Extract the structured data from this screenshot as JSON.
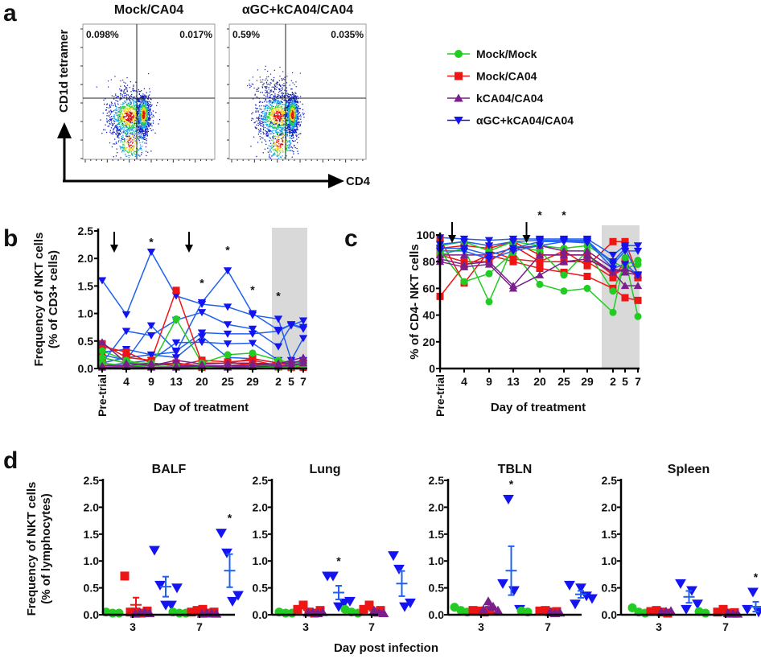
{
  "colors": {
    "green": "#22cc22",
    "red": "#ee1515",
    "purple": "#7a1f8c",
    "blue": "#1414f0",
    "blue_line": "#2060f0",
    "shade": "#d9d9d9"
  },
  "legend": [
    {
      "label": "Mock/Mock",
      "marker": "circle",
      "color": "green"
    },
    {
      "label": "Mock/CA04",
      "marker": "square",
      "color": "red"
    },
    {
      "label": "kCA04/CA04",
      "marker": "triangle-up",
      "color": "purple"
    },
    {
      "label": "αGC+kCA04/CA04",
      "marker": "triangle-down",
      "color": "blue"
    }
  ],
  "chart_data": [
    {
      "panel": "a",
      "type": "scatter",
      "subtype": "flow-cytometry-density",
      "ylabel": "CD1d tetramer",
      "xlabel": "CD4",
      "plots": [
        {
          "title": "Mock/CA04",
          "upper_left": "0.098%",
          "upper_right": "0.017%"
        },
        {
          "title": "αGC+kCA04/CA04",
          "upper_left": "0.59%",
          "upper_right": "0.035%"
        }
      ]
    },
    {
      "panel": "b",
      "type": "line",
      "ylabel": "Frequency of NKT cells\n(% of CD3+ cells)",
      "ylabel_lines": [
        "Frequency of NKT cells",
        "(% of CD3+ cells)"
      ],
      "xlabel": "Day of treatment",
      "categories": [
        "Pre-trial",
        "4",
        "9",
        "13",
        "20",
        "25",
        "29",
        "2",
        "5",
        "7"
      ],
      "yticks": [
        "0.0",
        "0.5",
        "1.0",
        "1.5",
        "2.0",
        "2.5"
      ],
      "ylim": [
        0,
        2.5
      ],
      "shaded_categories": [
        "2",
        "5",
        "7"
      ],
      "arrows_between": [
        [
          "Pre-trial",
          "4"
        ],
        [
          "13",
          "20"
        ]
      ],
      "significance": [
        {
          "category": "9",
          "value": 2.35,
          "label": "*"
        },
        {
          "category": "20",
          "value": 1.6,
          "label": "*"
        },
        {
          "category": "25",
          "value": 2.2,
          "label": "*"
        },
        {
          "category": "29",
          "value": 1.48,
          "label": "*"
        },
        {
          "category": "2",
          "value": 1.37,
          "label": "*"
        }
      ],
      "series": [
        {
          "group": "blue",
          "values": [
            1.6,
            0.98,
            2.12,
            1.32,
            1.17,
            1.12,
            0.97,
            0.9,
            0.15,
            0.55
          ]
        },
        {
          "group": "blue",
          "values": [
            0.3,
            0.35,
            0.25,
            0.3,
            1.2,
            1.78,
            1.0,
            0.7,
            0.8,
            0.72
          ]
        },
        {
          "group": "blue",
          "values": [
            0.1,
            0.68,
            0.6,
            0.88,
            1.02,
            0.8,
            0.72,
            0.4,
            0.78,
            0.87
          ]
        },
        {
          "group": "blue",
          "values": [
            0.25,
            0.15,
            0.78,
            0.32,
            0.65,
            0.63,
            0.63,
            0.68,
            0.8,
            0.75
          ]
        },
        {
          "group": "blue",
          "values": [
            0.05,
            0.1,
            0.15,
            0.47,
            0.48,
            0.45,
            0.46,
            0.15,
            0.05,
            0.15
          ]
        },
        {
          "group": "blue",
          "values": [
            0.1,
            0.2,
            0.25,
            0.2,
            0.58,
            0.2,
            0.18,
            0.1,
            0.08,
            0.1
          ]
        },
        {
          "group": "red",
          "values": [
            0.45,
            0.2,
            0.15,
            1.42,
            0.1,
            0.1,
            0.18,
            0.1,
            0.05,
            0.1
          ]
        },
        {
          "group": "red",
          "values": [
            0.4,
            0.3,
            0.1,
            0.05,
            0.15,
            0.12,
            0.15,
            0.05,
            0.02,
            0.08
          ]
        },
        {
          "group": "red",
          "values": [
            0.1,
            0.05,
            0.05,
            0.1,
            0.05,
            0.05,
            0.08,
            0.05,
            0.03,
            0.05
          ]
        },
        {
          "group": "red",
          "values": [
            0.2,
            0.1,
            0.08,
            0.1,
            0.02,
            0.05,
            0.1,
            0.03,
            0.02,
            0.02
          ]
        },
        {
          "group": "green",
          "values": [
            0.32,
            0.15,
            0.05,
            0.9,
            0.1,
            0.25,
            0.28,
            0.15,
            0.1,
            0.1
          ]
        },
        {
          "group": "green",
          "values": [
            0.2,
            0.1,
            0.1,
            0.05,
            0.05,
            0.05,
            0.05,
            0.05,
            0.05,
            0.05
          ]
        },
        {
          "group": "green",
          "values": [
            0.1,
            0.05,
            0.05,
            0.03,
            0.02,
            0.03,
            0.03,
            0.02,
            0.02,
            0.05
          ]
        },
        {
          "group": "purple",
          "values": [
            0.48,
            0.1,
            0.05,
            0.15,
            0.08,
            0.1,
            0.1,
            0.08,
            0.15,
            0.2
          ]
        },
        {
          "group": "purple",
          "values": [
            0.05,
            0.05,
            0.1,
            0.05,
            0.05,
            0.05,
            0.05,
            0.1,
            0.1,
            0.15
          ]
        },
        {
          "group": "purple",
          "values": [
            0.02,
            0.03,
            0.02,
            0.02,
            0.05,
            0.02,
            0.03,
            0.05,
            0.05,
            0.1
          ]
        }
      ]
    },
    {
      "panel": "c",
      "type": "line",
      "ylabel": "% of CD4- NKT cells",
      "xlabel": "Day of treatment",
      "categories": [
        "Pre-trial",
        "4",
        "9",
        "13",
        "20",
        "25",
        "29",
        "2",
        "5",
        "7"
      ],
      "yticks": [
        "0",
        "20",
        "40",
        "60",
        "80",
        "100"
      ],
      "ylim": [
        0,
        100
      ],
      "shaded_categories": [
        "2",
        "5",
        "7"
      ],
      "arrows_between": [
        [
          "Pre-trial",
          "4"
        ],
        [
          "13",
          "20"
        ]
      ],
      "significance": [
        {
          "category": "20",
          "value": 117,
          "label": "*"
        },
        {
          "category": "25",
          "value": 117,
          "label": "*"
        }
      ],
      "series": [
        {
          "group": "red",
          "values": [
            54,
            77,
            85,
            80,
            75,
            72,
            69,
            60,
            53,
            51
          ]
        },
        {
          "group": "red",
          "values": [
            97,
            64,
            88,
            82,
            80,
            88,
            77,
            95,
            95,
            70
          ]
        },
        {
          "group": "red",
          "values": [
            90,
            92,
            90,
            95,
            85,
            85,
            85,
            70,
            75,
            70
          ]
        },
        {
          "group": "red",
          "values": [
            85,
            80,
            80,
            92,
            80,
            80,
            80,
            68,
            80,
            68
          ]
        },
        {
          "group": "green",
          "values": [
            88,
            65,
            71,
            87,
            63,
            58,
            60,
            42,
            83,
            39
          ]
        },
        {
          "group": "green",
          "values": [
            85,
            90,
            50,
            92,
            88,
            70,
            88,
            58,
            78,
            81
          ]
        },
        {
          "group": "green",
          "values": [
            92,
            95,
            88,
            95,
            92,
            90,
            92,
            80,
            75,
            78
          ]
        },
        {
          "group": "purple",
          "values": [
            80,
            76,
            78,
            60,
            70,
            80,
            82,
            72,
            62,
            62
          ]
        },
        {
          "group": "purple",
          "values": [
            82,
            78,
            80,
            62,
            85,
            85,
            85,
            72,
            75,
            70
          ]
        },
        {
          "group": "purple",
          "values": [
            85,
            85,
            85,
            90,
            92,
            88,
            88,
            75,
            72,
            70
          ]
        },
        {
          "group": "blue",
          "values": [
            98,
            97,
            96,
            97,
            97,
            97,
            97,
            85,
            92,
            92
          ]
        },
        {
          "group": "blue",
          "values": [
            93,
            95,
            92,
            95,
            96,
            96,
            96,
            78,
            88,
            88
          ]
        },
        {
          "group": "blue",
          "values": [
            90,
            90,
            85,
            90,
            95,
            95,
            95,
            75,
            78,
            70
          ]
        },
        {
          "group": "blue",
          "values": [
            88,
            88,
            82,
            88,
            92,
            95,
            94,
            80,
            90,
            70
          ]
        }
      ]
    },
    {
      "panel": "d",
      "type": "scatter",
      "subtype": "dot-plot-mean-sem",
      "ylabel_lines": [
        "Frequency of NKT cells",
        "(% of lymphocytes)"
      ],
      "xlabel": "Day post infection",
      "categories": [
        "3",
        "7"
      ],
      "yticks": [
        "0.0",
        "0.5",
        "1.0",
        "1.5",
        "2.0",
        "2.5"
      ],
      "ylim": [
        0,
        2.5
      ],
      "subplots": [
        {
          "title": "BALF",
          "days": [
            {
              "green": [
                0.05,
                0.03,
                0.03
              ],
              "red": [
                0.72,
                0.05,
                0.05,
                0.03,
                0.07
              ],
              "purple": [
                0.02,
                0.04,
                0.05,
                0.03
              ],
              "blue": [
                1.2,
                0.55,
                0.18,
                0.18,
                0.5
              ],
              "star": false
            },
            {
              "green": [
                0.05,
                0.03,
                0.03
              ],
              "red": [
                0.05,
                0.08,
                0.1,
                0.03,
                0.05
              ],
              "purple": [
                0.02,
                0.03,
                0.03,
                0.02
              ],
              "blue": [
                1.52,
                1.15,
                0.25,
                0.36
              ],
              "star": true
            }
          ]
        },
        {
          "title": "Lung",
          "days": [
            {
              "green": [
                0.05,
                0.03,
                0.03
              ],
              "red": [
                0.1,
                0.18,
                0.05,
                0.03,
                0.08
              ],
              "purple": [
                0.04,
                0.05,
                0.03,
                0.05
              ],
              "blue": [
                0.72,
                0.72,
                0.15,
                0.22,
                0.25
              ],
              "star": true
            },
            {
              "green": [
                0.1,
                0.05,
                0.03
              ],
              "red": [
                0.1,
                0.18,
                0.05,
                0.08
              ],
              "purple": [
                0.08,
                0.04,
                0.03
              ],
              "blue": [
                1.1,
                0.85,
                0.15,
                0.22
              ],
              "star": false
            }
          ]
        },
        {
          "title": "TBLN",
          "days": [
            {
              "green": [
                0.14,
                0.08,
                0.05
              ],
              "red": [
                0.08,
                0.07,
                0.05,
                0.08
              ],
              "purple": [
                0.1,
                0.25,
                0.15,
                0.08
              ],
              "blue": [
                0.58,
                2.15,
                0.45,
                0.1
              ],
              "star": true
            },
            {
              "green": [
                0.07,
                0.05
              ],
              "red": [
                0.07,
                0.08,
                0.05,
                0.06
              ],
              "purple": [
                0.05,
                0.03,
                0.04
              ],
              "blue": [
                0.55,
                0.2,
                0.5,
                0.35,
                0.3
              ],
              "star": false
            }
          ]
        },
        {
          "title": "Spleen",
          "days": [
            {
              "green": [
                0.13,
                0.05,
                0.03
              ],
              "red": [
                0.06,
                0.08,
                0.05,
                0.03
              ],
              "purple": [
                0.05,
                0.06,
                0.07
              ],
              "blue": [
                0.58,
                0.1,
                0.45,
                0.2
              ],
              "star": false
            },
            {
              "green": [
                0.06,
                0.03
              ],
              "red": [
                0.05,
                0.1,
                0.03,
                0.04
              ],
              "purple": [
                0.03,
                0.02,
                0.02
              ],
              "blue": [
                0.1,
                0.42,
                0.05,
                0.03
              ],
              "star": true
            }
          ]
        }
      ],
      "star_label": "*"
    }
  ],
  "panel_labels": [
    "a",
    "b",
    "c",
    "d"
  ]
}
